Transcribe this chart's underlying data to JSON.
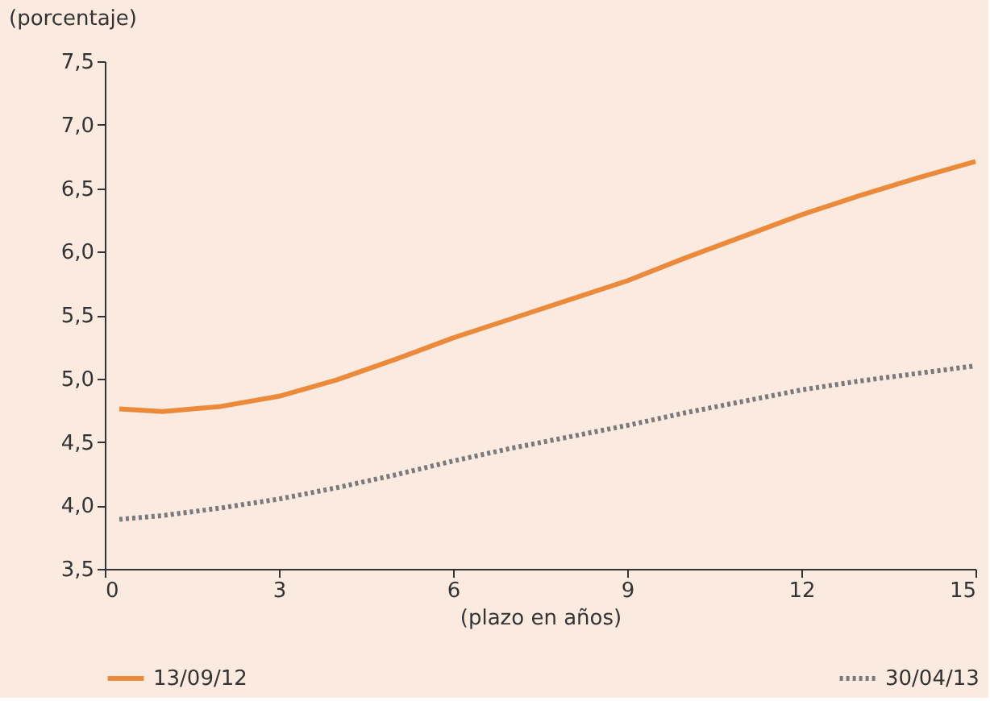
{
  "chart_data": {
    "type": "line",
    "ylabel": "(porcentaje)",
    "xlabel": "(plazo en años)",
    "xlim": [
      0,
      15
    ],
    "xticks": [
      0,
      3,
      6,
      9,
      12,
      15
    ],
    "ylim": [
      3.5,
      7.5
    ],
    "yticks": [
      {
        "value": 3.5,
        "label": "3,5"
      },
      {
        "value": 4.0,
        "label": "4,0"
      },
      {
        "value": 4.5,
        "label": "4,5"
      },
      {
        "value": 5.0,
        "label": "5,0"
      },
      {
        "value": 5.5,
        "label": "5,5"
      },
      {
        "value": 6.0,
        "label": "6,0"
      },
      {
        "value": 6.5,
        "label": "6,5"
      },
      {
        "value": 7.0,
        "label": "7,0"
      },
      {
        "value": 7.5,
        "label": "7,5"
      }
    ],
    "x": [
      0.25,
      1,
      2,
      3,
      4,
      5,
      6,
      7,
      8,
      9,
      10,
      11,
      12,
      13,
      14,
      15
    ],
    "series": [
      {
        "name": "13/09/12",
        "color": "#ec8a3c",
        "line_style": "solid",
        "values": [
          4.76,
          4.74,
          4.78,
          4.86,
          4.99,
          5.15,
          5.32,
          5.47,
          5.62,
          5.77,
          5.95,
          6.12,
          6.29,
          6.44,
          6.58,
          6.71
        ]
      },
      {
        "name": "30/04/13",
        "color": "#7a7a7a",
        "line_style": "dotted",
        "values": [
          3.89,
          3.92,
          3.98,
          4.05,
          4.14,
          4.24,
          4.35,
          4.45,
          4.54,
          4.63,
          4.73,
          4.82,
          4.91,
          4.98,
          5.04,
          5.1
        ]
      }
    ],
    "grid": false,
    "legend": "bottom",
    "marker": "none"
  }
}
